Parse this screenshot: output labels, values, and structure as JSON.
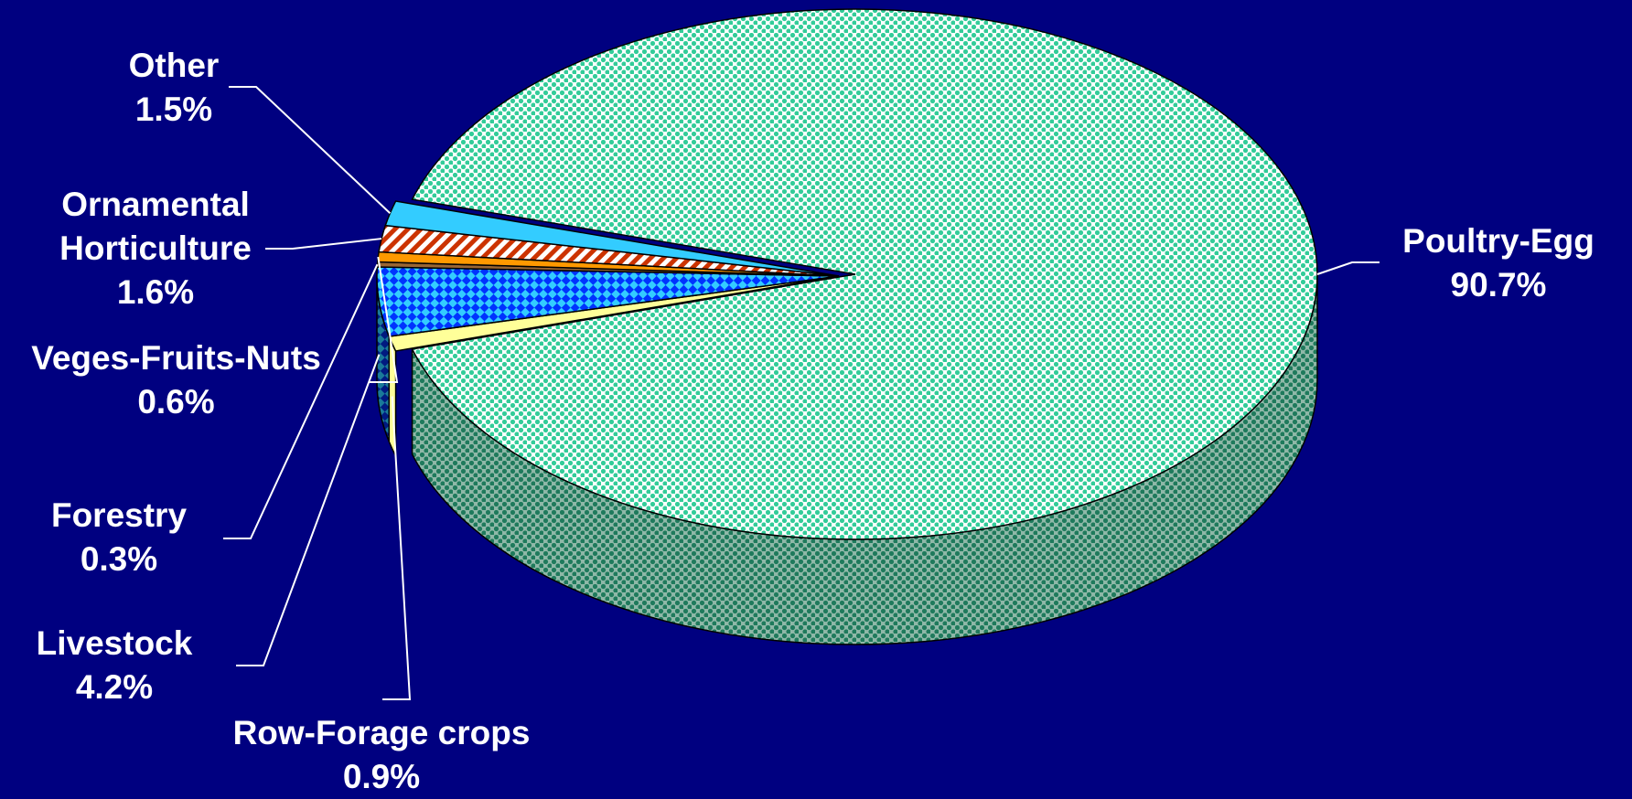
{
  "chart_data": {
    "type": "pie",
    "title": "",
    "slices": [
      {
        "label": "Poultry-Egg",
        "value": 90.7,
        "display": "90.7%",
        "color": "#33cc99",
        "pattern": "dots"
      },
      {
        "label": "Row-Forage crops",
        "value": 0.9,
        "display": "0.9%",
        "color": "#ffff99",
        "pattern": "solid"
      },
      {
        "label": "Livestock",
        "value": 4.2,
        "display": "4.2%",
        "color": "#0033ff",
        "pattern": "checker"
      },
      {
        "label": "Forestry",
        "value": 0.3,
        "display": "0.3%",
        "color": "#996633",
        "pattern": "solid"
      },
      {
        "label": "Veges-Fruits-Nuts",
        "value": 0.6,
        "display": "0.6%",
        "color": "#ff9900",
        "pattern": "solid"
      },
      {
        "label": "Ornamental Horticulture",
        "value": 1.6,
        "display": "1.6%",
        "color": "#cc3300",
        "pattern": "stripes"
      },
      {
        "label": "Other",
        "value": 1.5,
        "display": "1.5%",
        "color": "#33ccff",
        "pattern": "solid"
      }
    ],
    "legend": "none",
    "style": "3d-exploded-pie"
  }
}
